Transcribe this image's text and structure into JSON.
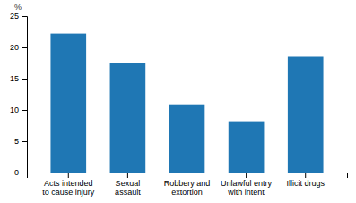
{
  "chart_data": {
    "type": "bar",
    "ylabel": "%",
    "categories": [
      "Acts intended\nto cause injury",
      "Sexual\nassault",
      "Robbery and\nextortion",
      "Unlawful entry\nwith intent",
      "Illicit drugs"
    ],
    "values": [
      22.2,
      17.5,
      10.9,
      8.2,
      18.5
    ],
    "ylim": [
      0,
      25
    ],
    "yticks": [
      0,
      5,
      10,
      15,
      20,
      25
    ],
    "grid": false
  }
}
